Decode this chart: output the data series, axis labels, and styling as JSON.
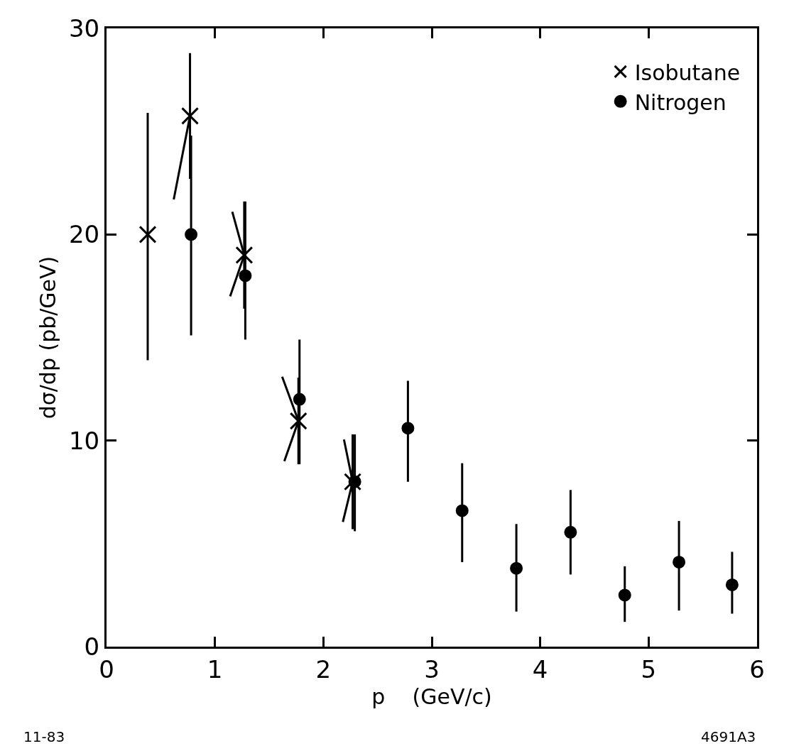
{
  "chart_data": {
    "type": "scatter",
    "xlabel": "p    (GeV/c)",
    "ylabel": "dσ/dp (pb/GeV)",
    "xlim": [
      0,
      6
    ],
    "xticks": [
      0,
      1,
      2,
      3,
      4,
      5,
      6
    ],
    "ylim": [
      0,
      30
    ],
    "yticks": [
      0,
      10,
      20,
      30
    ],
    "legend": "top right",
    "annotations": [
      "11-83",
      "4691A3"
    ],
    "series": [
      {
        "name": "Isobutane",
        "color": "#000000",
        "marker": "cross",
        "x": [
          0.38,
          0.77,
          1.27,
          1.77,
          2.27
        ],
        "values": [
          20.0,
          25.75,
          19.0,
          10.95,
          8.0
        ],
        "errors": [
          [
            13.9,
            25.9
          ],
          [
            22.7,
            28.8
          ],
          [
            16.4,
            21.6
          ],
          [
            8.85,
            13.05
          ],
          [
            5.7,
            10.3
          ]
        ]
      },
      {
        "name": "Nitrogen",
        "color": "#000000",
        "marker": "circle",
        "x": [
          0.78,
          1.28,
          1.78,
          2.29,
          2.78,
          3.28,
          3.78,
          4.28,
          4.78,
          5.28,
          5.77
        ],
        "values": [
          20.0,
          18.0,
          12.0,
          8.0,
          10.6,
          6.6,
          3.8,
          5.55,
          2.5,
          4.1,
          3.0
        ],
        "errors": [
          [
            15.1,
            24.8
          ],
          [
            14.9,
            21.6
          ],
          [
            8.85,
            14.9
          ],
          [
            5.6,
            10.3
          ],
          [
            8.0,
            12.9
          ],
          [
            4.1,
            8.9
          ],
          [
            1.7,
            5.95
          ],
          [
            3.5,
            7.6
          ],
          [
            1.2,
            3.9
          ],
          [
            1.75,
            6.1
          ],
          [
            1.6,
            4.6
          ]
        ]
      },
      {
        "type": "line",
        "color": "#000000",
        "x": [
          0.62,
          0.77
        ],
        "values": [
          21.7,
          25.75
        ]
      },
      {
        "type": "line",
        "color": "#000000",
        "x": [
          1.16,
          1.27,
          1.14
        ],
        "values": [
          21.1,
          19.0,
          17.0
        ]
      },
      {
        "type": "line",
        "color": "#000000",
        "x": [
          1.62,
          1.77,
          1.64
        ],
        "values": [
          13.1,
          10.95,
          9.0
        ]
      },
      {
        "type": "line",
        "color": "#000000",
        "x": [
          2.19,
          2.27,
          2.18
        ],
        "values": [
          10.05,
          8.0,
          6.05
        ]
      }
    ]
  }
}
